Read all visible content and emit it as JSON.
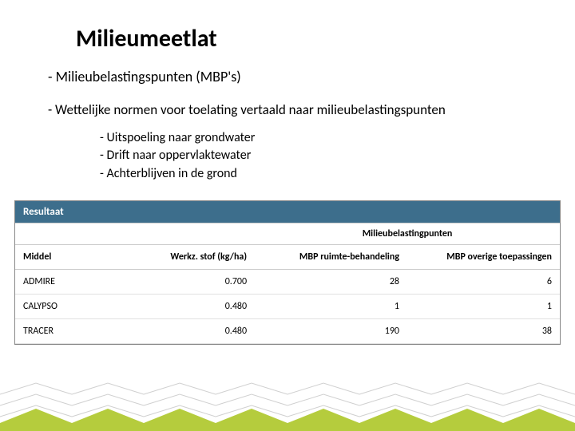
{
  "title": "Milieumeetlat",
  "bullet1": "- Milieubelastingspunten (MBP's)",
  "bullet2": "- Wettelijke normen voor toelating vertaald naar milieubelastingspunten",
  "sub_a": "- Uitspoeling naar grondwater",
  "sub_b": "- Drift naar oppervlaktewater",
  "sub_c": "- Achterblijven in de grond",
  "table": {
    "result_label": "Resultaat",
    "header_bg": "#3d6e8c",
    "group_header": "Milieubelastingpunten",
    "columns": {
      "middel": "Middel",
      "werkz": "Werkz. stof (kg/ha)",
      "mbp_ruimte": "MBP ruimte-behandeling",
      "mbp_overige": "MBP overige toepassingen"
    },
    "rows": [
      {
        "middel": "ADMIRE",
        "werkz": "0.700",
        "mbp1": "28",
        "mbp2": "6"
      },
      {
        "middel": "CALYPSO",
        "werkz": "0.480",
        "mbp1": "1",
        "mbp2": "1"
      },
      {
        "middel": "TRACER",
        "werkz": "0.480",
        "mbp1": "190",
        "mbp2": "38"
      }
    ]
  },
  "decor": {
    "fill": "#b5cc3d",
    "stroke": "#d0d0d0"
  }
}
